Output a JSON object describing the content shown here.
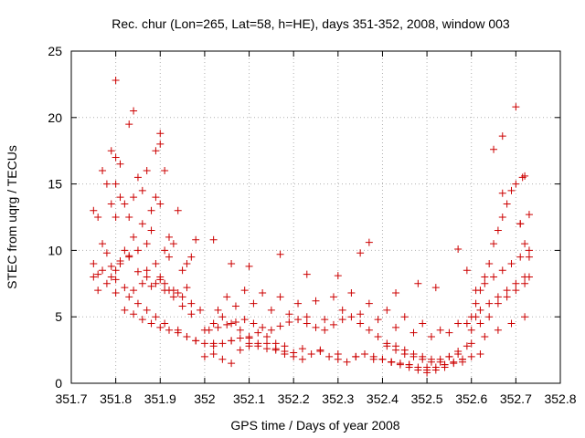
{
  "chart_data": {
    "type": "scatter",
    "title": "Rec. chur (Lon=265, Lat=58, h=HE), days 351-352, 2008, window 003",
    "xlabel": "GPS time / Days of year 2008",
    "ylabel": "STEC from uqrg / TECUs",
    "xlim": [
      351.7,
      352.8
    ],
    "ylim": [
      0,
      25
    ],
    "xticks": [
      "351.7",
      "351.8",
      "351.9",
      "352",
      "352.1",
      "352.2",
      "352.3",
      "352.4",
      "352.5",
      "352.6",
      "352.7",
      "352.8"
    ],
    "yticks": [
      "0",
      "5",
      "10",
      "15",
      "20",
      "25"
    ],
    "grid": true,
    "marker": "+",
    "color": "#cc0000",
    "series": [
      {
        "x": [
          351.75,
          351.75,
          351.76,
          351.76,
          351.77,
          351.77,
          351.78,
          351.78,
          351.79,
          351.79,
          351.8,
          351.8,
          351.8,
          351.81,
          351.81,
          351.82,
          351.82,
          351.83,
          351.83,
          351.84,
          351.84,
          351.85,
          351.86,
          351.86,
          351.87,
          351.87,
          351.88,
          351.88,
          351.89,
          351.89,
          351.9,
          351.9,
          351.91,
          351.91,
          351.92,
          351.92,
          351.93,
          351.94,
          351.95,
          351.96,
          351.97,
          351.98,
          351.76,
          351.78,
          351.8,
          351.82,
          351.84,
          351.86,
          351.88,
          351.9,
          351.92,
          351.94,
          351.96,
          351.79,
          351.8,
          351.81,
          351.83,
          351.85,
          351.87,
          351.89,
          351.9,
          351.91,
          351.93,
          351.95,
          351.97,
          351.99,
          351.75,
          351.77,
          351.79,
          351.81,
          351.83,
          351.85,
          351.87,
          351.89,
          351.91,
          351.93,
          351.95,
          351.97,
          351.8,
          351.83,
          351.85,
          351.87,
          351.89,
          351.91,
          351.94,
          351.96,
          351.98,
          352.0,
          352.02,
          352.04,
          352.06,
          352.08,
          352.1,
          352.12,
          352.14,
          352.16,
          352.18,
          352.2,
          351.82,
          351.84,
          351.86,
          351.88,
          351.9,
          351.92,
          351.94,
          351.96,
          351.98,
          352.0,
          352.02,
          352.04,
          352.06,
          352.08,
          352.1,
          352.12,
          352.14,
          352.16,
          352.0,
          352.02,
          352.04,
          352.06,
          352.08,
          352.1,
          352.12,
          352.14,
          352.16,
          352.18,
          352.2,
          352.22,
          352.24,
          352.26,
          352.28,
          352.3,
          352.32,
          352.34,
          352.36,
          352.38,
          352.4,
          352.42,
          352.44,
          352.46,
          352.48,
          352.5,
          352.52,
          352.54,
          352.56,
          352.58,
          352.6,
          352.62,
          352.01,
          352.03,
          352.05,
          352.07,
          352.09,
          352.11,
          352.13,
          352.15,
          352.17,
          352.19,
          352.21,
          352.23,
          352.25,
          352.27,
          352.29,
          352.31,
          352.33,
          352.35,
          352.37,
          352.39,
          352.41,
          352.43,
          352.45,
          352.47,
          352.49,
          352.51,
          352.53,
          352.55,
          352.57,
          352.59,
          352.05,
          352.09,
          352.13,
          352.17,
          352.21,
          352.25,
          352.29,
          352.33,
          352.37,
          352.41,
          352.45,
          352.49,
          352.53,
          352.57,
          352.61,
          352.03,
          352.07,
          352.11,
          352.15,
          352.19,
          352.23,
          352.27,
          352.31,
          352.35,
          352.39,
          352.43,
          352.47,
          352.51,
          352.55,
          352.59,
          352.02,
          352.06,
          352.1,
          352.14,
          352.18,
          352.22,
          352.26,
          352.3,
          352.34,
          352.38,
          352.42,
          352.46,
          352.5,
          352.54,
          352.58,
          352.4,
          352.42,
          352.44,
          352.46,
          352.48,
          352.5,
          352.52,
          352.54,
          352.56,
          352.58,
          352.41,
          352.43,
          352.45,
          352.47,
          352.49,
          352.51,
          352.53,
          352.55,
          352.57,
          352.6,
          352.61,
          352.62,
          352.63,
          352.64,
          352.65,
          352.66,
          352.67,
          352.68,
          352.69,
          352.7,
          352.71,
          352.72,
          352.73,
          352.6,
          352.62,
          352.64,
          352.66,
          352.68,
          352.7,
          352.72,
          352.73,
          352.61,
          352.63,
          352.65,
          352.67,
          352.69,
          352.71,
          352.73,
          352.62,
          352.64,
          352.66,
          352.68,
          352.7,
          352.72,
          352.6,
          352.63,
          352.66,
          352.69,
          352.72,
          351.8,
          351.84,
          351.9,
          352.02,
          352.06,
          352.1,
          352.17,
          352.23,
          352.3,
          352.35,
          352.37,
          352.43,
          352.48,
          352.52,
          352.57,
          352.59,
          352.65,
          352.67,
          352.7,
          352.715,
          352.72,
          352.73,
          352.71,
          352.67
        ],
        "y": [
          13.0,
          9.0,
          12.5,
          8.2,
          16.0,
          10.5,
          15.0,
          9.8,
          17.5,
          13.5,
          17.0,
          15.0,
          12.5,
          16.5,
          14.0,
          13.5,
          10.0,
          19.5,
          12.5,
          14.0,
          11.0,
          15.5,
          14.5,
          12.0,
          16.0,
          10.5,
          13.0,
          11.5,
          17.5,
          14.0,
          18.0,
          13.5,
          16.0,
          10.0,
          11.0,
          9.5,
          10.5,
          13.0,
          8.5,
          9.0,
          9.5,
          10.8,
          7.0,
          7.5,
          7.8,
          7.2,
          7.0,
          7.5,
          7.3,
          7.8,
          7.0,
          6.8,
          7.2,
          8.0,
          8.5,
          9.0,
          9.5,
          10.0,
          8.5,
          9.0,
          8.0,
          7.5,
          7.0,
          6.5,
          6.0,
          5.5,
          8.0,
          8.5,
          8.8,
          9.2,
          9.6,
          8.4,
          8.0,
          7.5,
          7.0,
          6.5,
          5.8,
          5.2,
          6.8,
          6.5,
          6.0,
          5.5,
          5.0,
          4.5,
          4.0,
          3.5,
          3.2,
          3.0,
          2.8,
          3.0,
          3.2,
          3.4,
          3.0,
          2.8,
          2.6,
          2.5,
          2.4,
          2.3,
          5.5,
          5.2,
          4.8,
          4.5,
          4.2,
          4.0,
          3.8,
          3.5,
          3.2,
          4.0,
          4.5,
          5.0,
          4.5,
          4.0,
          3.5,
          3.8,
          3.5,
          3.0,
          2.0,
          2.2,
          1.8,
          1.5,
          2.5,
          2.8,
          3.0,
          3.5,
          2.6,
          2.2,
          2.0,
          1.8,
          2.2,
          2.5,
          2.0,
          1.8,
          1.6,
          2.0,
          2.2,
          2.0,
          1.8,
          1.6,
          1.4,
          1.2,
          1.0,
          0.8,
          1.0,
          1.2,
          1.5,
          1.8,
          2.0,
          2.2,
          4.0,
          4.2,
          4.4,
          4.6,
          4.8,
          4.5,
          4.2,
          4.0,
          4.3,
          4.6,
          4.8,
          4.5,
          4.2,
          4.0,
          4.4,
          4.8,
          5.0,
          4.5,
          4.0,
          3.5,
          3.0,
          2.8,
          2.5,
          2.2,
          2.0,
          1.8,
          1.6,
          2.0,
          2.4,
          2.8,
          6.5,
          7.0,
          6.8,
          6.5,
          6.0,
          6.2,
          6.5,
          6.8,
          6.0,
          5.5,
          5.0,
          4.5,
          4.0,
          4.5,
          5.0,
          5.5,
          5.8,
          6.0,
          5.5,
          5.2,
          5.0,
          4.8,
          5.5,
          5.2,
          4.8,
          4.2,
          3.8,
          3.5,
          3.8,
          4.5,
          3.0,
          3.2,
          3.4,
          3.0,
          2.8,
          2.6,
          2.4,
          2.2,
          2.0,
          1.8,
          1.6,
          1.4,
          1.2,
          1.4,
          1.6,
          1.8,
          1.6,
          1.5,
          1.4,
          1.2,
          1.0,
          1.2,
          1.4,
          1.6,
          1.8,
          2.8,
          2.5,
          2.2,
          2.0,
          1.8,
          1.6,
          1.8,
          2.0,
          2.2,
          5.0,
          6.0,
          7.0,
          8.0,
          9.0,
          10.5,
          11.5,
          12.5,
          13.5,
          14.5,
          15.0,
          12.0,
          10.5,
          9.5,
          4.0,
          4.5,
          5.0,
          6.0,
          6.5,
          7.0,
          7.5,
          8.0,
          7.0,
          7.5,
          8.0,
          8.5,
          9.0,
          9.5,
          10.0,
          5.5,
          6.0,
          6.5,
          7.0,
          7.5,
          8.0,
          3.0,
          3.5,
          4.0,
          4.5,
          5.0,
          22.8,
          20.5,
          18.8,
          10.8,
          9.0,
          8.8,
          9.7,
          8.2,
          8.1,
          9.8,
          10.6,
          6.8,
          7.5,
          7.2,
          10.1,
          8.5,
          17.6,
          18.6,
          20.8,
          15.5,
          15.6,
          12.7,
          12.0,
          14.3
        ]
      }
    ]
  }
}
